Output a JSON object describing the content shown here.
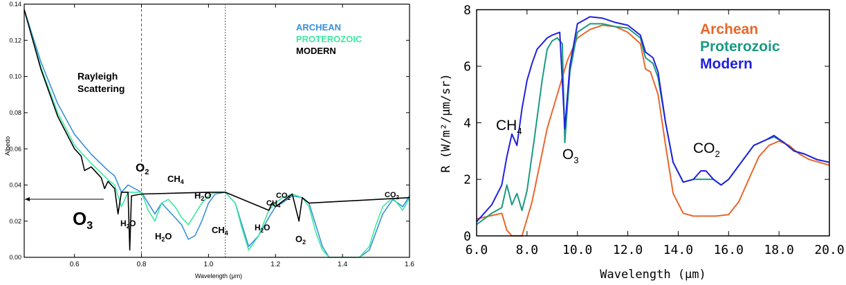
{
  "chart_data": [
    {
      "type": "line",
      "title": "",
      "xlabel": "Wavelength (μm)",
      "ylabel": "Albedo",
      "xlim": [
        0.45,
        1.6
      ],
      "ylim": [
        0.0,
        0.14
      ],
      "x_ticks": [
        "0.6",
        "0.8",
        "1.0",
        "1.2",
        "1.4",
        "1.6"
      ],
      "y_ticks": [
        "0.00",
        "0.02",
        "0.04",
        "0.06",
        "0.08",
        "0.10",
        "0.12",
        "0.14"
      ],
      "vlines": [
        0.8,
        1.05
      ],
      "legend": [
        "ARCHEAN",
        "PROTEROZOIC",
        "MODERN"
      ],
      "legend_position": "top-right",
      "annotations": {
        "rayleigh_1": "Rayleigh",
        "rayleigh_2": "Scattering",
        "o3": "O",
        "o3_sub": "3",
        "o2_a": "O",
        "o2_a_sub": "2",
        "ch4_a": "CH",
        "ch4_a_sub": "4",
        "h2o_a": "H",
        "h2o_a_sub": "2",
        "h2o_a_end": "O",
        "h2o_b": "H",
        "h2o_b_sub": "2",
        "h2o_b_end": "O",
        "h2o_c": "H",
        "h2o_c_sub": "2",
        "h2o_c_end": "O",
        "ch4_b": "CH",
        "ch4_b_sub": "4",
        "h2o_d": "H",
        "h2o_d_sub": "2",
        "h2o_d_end": "O",
        "ch4_c": "CH",
        "ch4_c_sub": "4",
        "co2_a": "CO",
        "co2_a_sub": "2",
        "o2_b": "O",
        "o2_b_sub": "2",
        "co2_b": "CO",
        "co2_b_sub": "2"
      },
      "series": [
        {
          "name": "ARCHEAN",
          "color": "#3a8fd9",
          "points": [
            [
              0.45,
              0.137
            ],
            [
              0.5,
              0.108
            ],
            [
              0.55,
              0.085
            ],
            [
              0.6,
              0.068
            ],
            [
              0.65,
              0.057
            ],
            [
              0.7,
              0.048
            ],
            [
              0.72,
              0.045
            ],
            [
              0.74,
              0.036
            ],
            [
              0.76,
              0.04
            ],
            [
              0.8,
              0.036
            ],
            [
              0.82,
              0.03
            ],
            [
              0.84,
              0.024
            ],
            [
              0.86,
              0.03
            ],
            [
              0.88,
              0.026
            ],
            [
              0.9,
              0.022
            ],
            [
              0.92,
              0.018
            ],
            [
              0.94,
              0.01
            ],
            [
              0.96,
              0.012
            ],
            [
              0.98,
              0.02
            ],
            [
              1.0,
              0.03
            ],
            [
              1.02,
              0.035
            ],
            [
              1.05,
              0.036
            ],
            [
              1.08,
              0.03
            ],
            [
              1.1,
              0.018
            ],
            [
              1.12,
              0.006
            ],
            [
              1.15,
              0.012
            ],
            [
              1.18,
              0.022
            ],
            [
              1.2,
              0.028
            ],
            [
              1.22,
              0.03
            ],
            [
              1.25,
              0.034
            ],
            [
              1.28,
              0.033
            ],
            [
              1.3,
              0.03
            ],
            [
              1.32,
              0.018
            ],
            [
              1.34,
              0.006
            ],
            [
              1.36,
              0.0
            ],
            [
              1.4,
              0.0
            ],
            [
              1.45,
              0.0
            ],
            [
              1.48,
              0.004
            ],
            [
              1.5,
              0.014
            ],
            [
              1.52,
              0.024
            ],
            [
              1.55,
              0.032
            ],
            [
              1.58,
              0.028
            ],
            [
              1.6,
              0.034
            ]
          ]
        },
        {
          "name": "PROTEROZOIC",
          "color": "#3de8a0",
          "points": [
            [
              0.45,
              0.137
            ],
            [
              0.5,
              0.105
            ],
            [
              0.55,
              0.08
            ],
            [
              0.6,
              0.062
            ],
            [
              0.65,
              0.052
            ],
            [
              0.7,
              0.043
            ],
            [
              0.72,
              0.04
            ],
            [
              0.74,
              0.028
            ],
            [
              0.76,
              0.036
            ],
            [
              0.8,
              0.036
            ],
            [
              0.82,
              0.026
            ],
            [
              0.84,
              0.02
            ],
            [
              0.86,
              0.03
            ],
            [
              0.88,
              0.032
            ],
            [
              0.9,
              0.028
            ],
            [
              0.92,
              0.022
            ],
            [
              0.94,
              0.018
            ],
            [
              0.96,
              0.024
            ],
            [
              0.98,
              0.03
            ],
            [
              1.0,
              0.034
            ],
            [
              1.02,
              0.036
            ],
            [
              1.05,
              0.036
            ],
            [
              1.08,
              0.03
            ],
            [
              1.1,
              0.016
            ],
            [
              1.12,
              0.004
            ],
            [
              1.15,
              0.012
            ],
            [
              1.18,
              0.026
            ],
            [
              1.2,
              0.03
            ],
            [
              1.22,
              0.033
            ],
            [
              1.25,
              0.035
            ],
            [
              1.28,
              0.033
            ],
            [
              1.3,
              0.028
            ],
            [
              1.32,
              0.014
            ],
            [
              1.34,
              0.004
            ],
            [
              1.36,
              0.0
            ],
            [
              1.4,
              0.0
            ],
            [
              1.45,
              0.0
            ],
            [
              1.48,
              0.006
            ],
            [
              1.5,
              0.018
            ],
            [
              1.52,
              0.028
            ],
            [
              1.55,
              0.033
            ],
            [
              1.58,
              0.026
            ],
            [
              1.6,
              0.033
            ]
          ]
        },
        {
          "name": "MODERN",
          "color": "#000000",
          "points": [
            [
              0.45,
              0.137
            ],
            [
              0.5,
              0.104
            ],
            [
              0.55,
              0.078
            ],
            [
              0.6,
              0.06
            ],
            [
              0.62,
              0.056
            ],
            [
              0.63,
              0.048
            ],
            [
              0.65,
              0.05
            ],
            [
              0.68,
              0.044
            ],
            [
              0.69,
              0.038
            ],
            [
              0.7,
              0.042
            ],
            [
              0.72,
              0.038
            ],
            [
              0.73,
              0.024
            ],
            [
              0.74,
              0.036
            ],
            [
              0.76,
              0.036
            ],
            [
              0.765,
              0.004
            ],
            [
              0.77,
              0.034
            ],
            [
              0.8,
              0.035
            ],
            [
              1.0,
              0.036
            ],
            [
              1.05,
              0.036
            ],
            [
              1.18,
              0.026
            ],
            [
              1.19,
              0.03
            ],
            [
              1.2,
              0.028
            ],
            [
              1.25,
              0.035
            ],
            [
              1.27,
              0.02
            ],
            [
              1.28,
              0.033
            ],
            [
              1.3,
              0.03
            ],
            [
              1.6,
              0.033
            ]
          ]
        }
      ]
    },
    {
      "type": "line",
      "title": "",
      "xlabel": "Wavelength (μm)",
      "ylabel": "R (W/m²/μm/sr)",
      "xlim": [
        6.0,
        20.0
      ],
      "ylim": [
        0,
        8
      ],
      "x_ticks": [
        "6.0",
        "8.0",
        "10.0",
        "12.0",
        "14.0",
        "16.0",
        "18.0",
        "20.0"
      ],
      "y_ticks": [
        "0",
        "2",
        "4",
        "6",
        "8"
      ],
      "legend": [
        "Archean",
        "Proterozoic",
        "Modern"
      ],
      "legend_position": "top-right",
      "annotations": {
        "ch4": "CH",
        "ch4_sub": "4",
        "o3": "O",
        "o3_sub": "3",
        "co2": "CO",
        "co2_sub": "2"
      },
      "series": [
        {
          "name": "Archean",
          "color": "#e8662a",
          "points": [
            [
              6.0,
              0.6
            ],
            [
              6.5,
              0.7
            ],
            [
              7.0,
              0.8
            ],
            [
              7.2,
              0.2
            ],
            [
              7.4,
              0.0
            ],
            [
              7.8,
              0.0
            ],
            [
              8.0,
              0.6
            ],
            [
              8.2,
              1.2
            ],
            [
              8.5,
              2.5
            ],
            [
              8.8,
              3.8
            ],
            [
              9.2,
              5.0
            ],
            [
              9.6,
              6.2
            ],
            [
              10.0,
              7.0
            ],
            [
              10.5,
              7.3
            ],
            [
              11.0,
              7.45
            ],
            [
              11.5,
              7.4
            ],
            [
              12.0,
              7.2
            ],
            [
              12.5,
              6.8
            ],
            [
              12.7,
              5.9
            ],
            [
              12.9,
              5.8
            ],
            [
              13.2,
              5.0
            ],
            [
              13.5,
              3.2
            ],
            [
              13.8,
              1.5
            ],
            [
              14.2,
              0.8
            ],
            [
              14.6,
              0.7
            ],
            [
              15.0,
              0.7
            ],
            [
              15.5,
              0.7
            ],
            [
              16.0,
              0.75
            ],
            [
              16.4,
              1.2
            ],
            [
              16.8,
              2.0
            ],
            [
              17.2,
              2.8
            ],
            [
              17.6,
              3.2
            ],
            [
              18.0,
              3.35
            ],
            [
              18.4,
              3.2
            ],
            [
              18.8,
              2.9
            ],
            [
              19.2,
              2.7
            ],
            [
              19.6,
              2.6
            ],
            [
              20.0,
              2.5
            ]
          ]
        },
        {
          "name": "Proterozoic",
          "color": "#1a9a80",
          "points": [
            [
              6.0,
              0.4
            ],
            [
              6.3,
              0.6
            ],
            [
              6.6,
              0.8
            ],
            [
              7.0,
              1.0
            ],
            [
              7.2,
              1.8
            ],
            [
              7.4,
              1.1
            ],
            [
              7.6,
              1.5
            ],
            [
              7.8,
              0.9
            ],
            [
              8.0,
              1.6
            ],
            [
              8.3,
              3.5
            ],
            [
              8.6,
              5.5
            ],
            [
              8.8,
              6.6
            ],
            [
              9.0,
              6.9
            ],
            [
              9.2,
              7.0
            ],
            [
              9.4,
              6.8
            ],
            [
              9.5,
              3.3
            ],
            [
              9.7,
              5.8
            ],
            [
              10.0,
              7.2
            ],
            [
              10.5,
              7.5
            ],
            [
              11.0,
              7.5
            ],
            [
              11.5,
              7.4
            ],
            [
              12.0,
              7.35
            ],
            [
              12.5,
              7.0
            ],
            [
              12.7,
              6.3
            ],
            [
              13.0,
              6.1
            ],
            [
              13.2,
              5.6
            ],
            [
              13.5,
              4.0
            ],
            [
              13.8,
              2.6
            ],
            [
              14.2,
              1.9
            ],
            [
              14.6,
              2.0
            ],
            [
              15.0,
              2.0
            ],
            [
              15.4,
              2.0
            ],
            [
              15.7,
              1.8
            ],
            [
              16.0,
              2.0
            ],
            [
              16.5,
              2.6
            ],
            [
              17.0,
              3.2
            ],
            [
              17.5,
              3.4
            ],
            [
              17.8,
              3.5
            ],
            [
              18.2,
              3.3
            ],
            [
              18.6,
              3.0
            ],
            [
              19.0,
              2.9
            ],
            [
              19.5,
              2.7
            ],
            [
              20.0,
              2.6
            ]
          ]
        },
        {
          "name": "Modern",
          "color": "#2020e0",
          "points": [
            [
              6.0,
              0.5
            ],
            [
              6.3,
              0.8
            ],
            [
              6.6,
              1.1
            ],
            [
              7.0,
              1.8
            ],
            [
              7.2,
              2.8
            ],
            [
              7.4,
              3.6
            ],
            [
              7.6,
              3.2
            ],
            [
              7.8,
              4.5
            ],
            [
              8.0,
              5.5
            ],
            [
              8.2,
              6.1
            ],
            [
              8.4,
              6.6
            ],
            [
              8.6,
              6.8
            ],
            [
              8.8,
              7.0
            ],
            [
              9.0,
              7.1
            ],
            [
              9.3,
              7.2
            ],
            [
              9.5,
              3.8
            ],
            [
              9.7,
              6.0
            ],
            [
              10.0,
              7.5
            ],
            [
              10.5,
              7.75
            ],
            [
              11.0,
              7.7
            ],
            [
              11.5,
              7.55
            ],
            [
              12.0,
              7.45
            ],
            [
              12.5,
              7.1
            ],
            [
              12.7,
              6.5
            ],
            [
              13.0,
              6.3
            ],
            [
              13.2,
              5.8
            ],
            [
              13.5,
              4.0
            ],
            [
              13.8,
              2.6
            ],
            [
              14.2,
              1.9
            ],
            [
              14.6,
              2.0
            ],
            [
              14.9,
              2.3
            ],
            [
              15.1,
              2.3
            ],
            [
              15.4,
              2.0
            ],
            [
              15.7,
              1.8
            ],
            [
              16.0,
              2.0
            ],
            [
              16.5,
              2.6
            ],
            [
              17.0,
              3.2
            ],
            [
              17.5,
              3.4
            ],
            [
              17.8,
              3.55
            ],
            [
              18.2,
              3.3
            ],
            [
              18.6,
              3.0
            ],
            [
              19.0,
              2.9
            ],
            [
              19.5,
              2.7
            ],
            [
              20.0,
              2.6
            ]
          ]
        }
      ]
    }
  ]
}
